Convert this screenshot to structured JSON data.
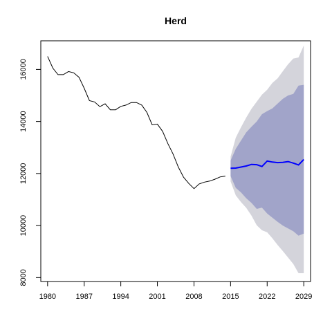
{
  "chart_data": {
    "type": "line",
    "title": "Herd",
    "xlabel": "",
    "ylabel": "",
    "xlim": [
      1978.7,
      2030.3
    ],
    "ylim": [
      7850,
      17100
    ],
    "x_ticks": [
      1980,
      1987,
      1994,
      2001,
      2008,
      2015,
      2022,
      2029
    ],
    "y_ticks": [
      8000,
      10000,
      12000,
      14000,
      16000
    ],
    "grid": false,
    "legend": "none",
    "colors": {
      "history": "#000000",
      "forecast": "#0000ff",
      "band_95": "#d4d4db",
      "band_80": "#a1a4c9"
    },
    "history": {
      "x": [
        1980,
        1981,
        1982,
        1983,
        1984,
        1985,
        1986,
        1987,
        1988,
        1989,
        1990,
        1991,
        1992,
        1993,
        1994,
        1995,
        1996,
        1997,
        1998,
        1999,
        2000,
        2001,
        2002,
        2003,
        2004,
        2005,
        2006,
        2007,
        2008,
        2009,
        2010,
        2011,
        2012,
        2013,
        2014
      ],
      "y": [
        16500,
        16050,
        15800,
        15800,
        15920,
        15870,
        15700,
        15280,
        14800,
        14750,
        14570,
        14680,
        14450,
        14450,
        14580,
        14630,
        14730,
        14730,
        14630,
        14350,
        13870,
        13900,
        13620,
        13150,
        12750,
        12250,
        11860,
        11620,
        11420,
        11600,
        11670,
        11710,
        11780,
        11870,
        11900
      ]
    },
    "forecast": {
      "x": [
        2015,
        2016,
        2017,
        2018,
        2019,
        2020,
        2021,
        2022,
        2023,
        2024,
        2025,
        2026,
        2027,
        2028,
        2029
      ],
      "mean": [
        12200,
        12210,
        12250,
        12290,
        12350,
        12340,
        12270,
        12480,
        12440,
        12420,
        12430,
        12460,
        12400,
        12330,
        12540
      ],
      "lo80": [
        11900,
        11450,
        11270,
        11050,
        10870,
        10640,
        10690,
        10460,
        10300,
        10140,
        10000,
        9890,
        9780,
        9610,
        9690
      ],
      "hi80": [
        12500,
        12950,
        13270,
        13580,
        13800,
        14000,
        14280,
        14400,
        14500,
        14690,
        14870,
        15000,
        15060,
        15380,
        15410
      ],
      "lo95": [
        11700,
        11160,
        10900,
        10680,
        10380,
        10010,
        9820,
        9740,
        9510,
        9250,
        9020,
        8770,
        8520,
        8170,
        8170
      ],
      "hi95": [
        12650,
        13380,
        13780,
        14150,
        14490,
        14760,
        15030,
        15220,
        15480,
        15660,
        15930,
        16200,
        16420,
        16460,
        16920
      ]
    }
  }
}
